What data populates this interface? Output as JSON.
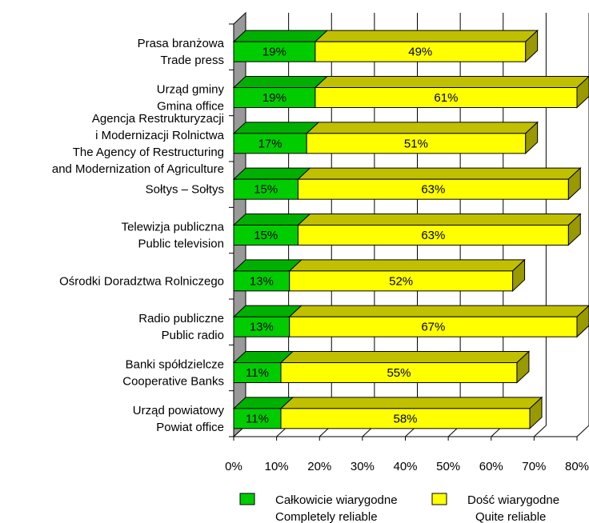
{
  "chart_data": {
    "type": "bar",
    "orientation": "horizontal",
    "stacked": true,
    "style": "3d",
    "categories": [
      [
        "Prasa branżowa",
        "Trade press"
      ],
      [
        "Urząd gminy",
        "Gmina office"
      ],
      [
        "Agencja Restrukturyzacji",
        "i Modernizacji Rolnictwa",
        "The Agency of Restructuring",
        "and Modernization of Agriculture"
      ],
      [
        "Sołtys – Sołtys"
      ],
      [
        "Telewizja publiczna",
        "Public television"
      ],
      [
        "Ośrodki Doradztwa Rolniczego"
      ],
      [
        "Radio publiczne",
        "Public radio"
      ],
      [
        "Banki spółdzielcze",
        "Cooperative Banks"
      ],
      [
        "Urząd powiatowy",
        "Powiat office"
      ]
    ],
    "series": [
      {
        "name": [
          "Całkowicie wiarygodne",
          "Completely reliable"
        ],
        "color": "#00cc00",
        "top_color": "#00b000",
        "values": [
          19,
          19,
          17,
          15,
          15,
          13,
          13,
          11,
          11
        ],
        "labels": [
          "19%",
          "19%",
          "17%",
          "15%",
          "15%",
          "13%",
          "13%",
          "11%",
          "11%"
        ]
      },
      {
        "name": [
          "Dość wiarygodne",
          "Quite reliable"
        ],
        "color": "#ffff00",
        "top_color": "#c0c000",
        "side_color": "#999900",
        "values": [
          49,
          61,
          51,
          63,
          63,
          52,
          67,
          55,
          58
        ],
        "labels": [
          "49%",
          "61%",
          "51%",
          "63%",
          "63%",
          "52%",
          "67%",
          "55%",
          "58%"
        ]
      }
    ],
    "xlim": [
      0,
      80
    ],
    "xticks": [
      "0%",
      "10%",
      "20%",
      "30%",
      "40%",
      "50%",
      "60%",
      "70%",
      "80%"
    ],
    "grid": true,
    "legend_position": "bottom"
  }
}
